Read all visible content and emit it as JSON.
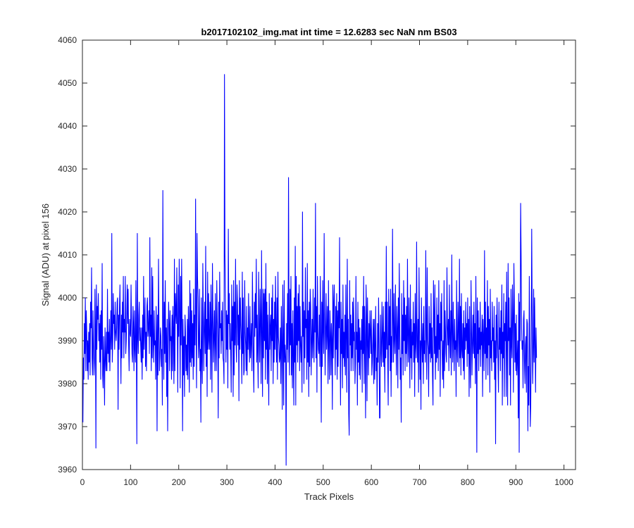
{
  "chart_data": {
    "type": "line",
    "title": "b2017102102_img.mat int time = 12.6283 sec  NaN nm BS03",
    "xlabel": "Track Pixels",
    "ylabel": "Signal (ADU) at pixel 156",
    "xlim": [
      0,
      1024
    ],
    "ylim": [
      3960,
      4060
    ],
    "x_ticks": [
      0,
      100,
      200,
      300,
      400,
      500,
      600,
      700,
      800,
      900,
      1000
    ],
    "x_tick_labels": [
      "0",
      "100",
      "200",
      "300",
      "400",
      "500",
      "600",
      "700",
      "800",
      "900",
      "1000"
    ],
    "y_ticks": [
      3960,
      3970,
      3980,
      3990,
      4000,
      4010,
      4020,
      4030,
      4040,
      4050,
      4060
    ],
    "y_tick_labels": [
      "3960",
      "3970",
      "3980",
      "3990",
      "4000",
      "4010",
      "4020",
      "4030",
      "4040",
      "4050",
      "4060"
    ],
    "grid": false,
    "series": [
      {
        "color": "#0000ff",
        "x_start": 1,
        "x_step": 1,
        "values": [
          3971,
          3986,
          3981,
          3994,
          3987,
          4000,
          3983,
          3997,
          3992,
          3983,
          3990,
          3981,
          3992,
          3985,
          3994,
          3982,
          3999,
          3993,
          4007,
          3986,
          3982,
          3997,
          3989,
          3982,
          3985,
          4002,
          3993,
          3965,
          4003,
          3988,
          3998,
          3995,
          4001,
          3990,
          3994,
          3985,
          3996,
          3981,
          3997,
          3988,
          4008,
          3982,
          3979,
          3991,
          3985,
          3975,
          3993,
          3986,
          3983,
          3992,
          3983,
          4002,
          3987,
          3992,
          3985,
          3995,
          3983,
          3990,
          3997,
          3988,
          4015,
          3985,
          3990,
          4001,
          3994,
          3996,
          3988,
          3999,
          3992,
          3990,
          3993,
          3999,
          4000,
          3974,
          3996,
          3988,
          3998,
          4003,
          3991,
          3980,
          3996,
          3986,
          3999,
          3992,
          4005,
          3986,
          3995,
          3992,
          4005,
          3987,
          3990,
          3996,
          4003,
          3994,
          4002,
          3989,
          3983,
          3995,
          3992,
          3991,
          4003,
          3994,
          3987,
          3985,
          3998,
          3994,
          3983,
          3997,
          3988,
          3985,
          4004,
          3990,
          3966,
          4015,
          3991,
          3987,
          3996,
          3999,
          3990,
          3993,
          3989,
          3985,
          3993,
          3981,
          3996,
          3986,
          4005,
          3988,
          3993,
          4000,
          3984,
          3992,
          3983,
          3998,
          4000,
          3991,
          3993,
          3997,
          3987,
          4014,
          3991,
          3996,
          3983,
          4007,
          3986,
          4005,
          3990,
          3985,
          3997,
          3989,
          3990,
          3981,
          3998,
          3992,
          3969,
          3996,
          3982,
          4009,
          3993,
          3983,
          3986,
          3993,
          3991,
          3984,
          3988,
          3975,
          4025,
          3996,
          3981,
          3999,
          3987,
          4004,
          3985,
          3993,
          3977,
          3995,
          3969,
          3987,
          3999,
          3994,
          3983,
          3997,
          3990,
          3991,
          3981,
          3996,
          3983,
          3998,
          3992,
          3980,
          4009,
          3983,
          4001,
          3997,
          3994,
          4007,
          3993,
          3978,
          4003,
          3991,
          4009,
          3996,
          3979,
          4005,
          3989,
          4009,
          3994,
          3969,
          3995,
          3982,
          3991,
          3977,
          3996,
          3992,
          3983,
          3989,
          3982,
          3995,
          3981,
          3998,
          3992,
          3978,
          4004,
          3985,
          4001,
          3984,
          3997,
          3986,
          3994,
          3981,
          4002,
          3984,
          3996,
          3989,
          4023,
          3994,
          3979,
          4015,
          4005,
          4000,
          3986,
          3989,
          4002,
          3983,
          3988,
          3971,
          4000,
          3986,
          3980,
          4008,
          3996,
          3983,
          3993,
          3999,
          3987,
          4012,
          3984,
          3995,
          3977,
          4006,
          3988,
          4001,
          3990,
          3988,
          3999,
          3981,
          4003,
          3993,
          3978,
          4008,
          3996,
          3985,
          3991,
          3997,
          3983,
          4001,
          3989,
          3983,
          4004,
          3995,
          3990,
          3972,
          3999,
          3986,
          4006,
          3993,
          3994,
          3987,
          3997,
          3990,
          3999,
          3986,
          3985,
          3980,
          4052,
          4010,
          4000,
          3985,
          3997,
          3988,
          3996,
          3979,
          4016,
          3994,
          4001,
          3988,
          3994,
          3987,
          3978,
          4003,
          3990,
          3998,
          3977,
          4004,
          3982,
          3999,
          3989,
          4009,
          3990,
          3985,
          4003,
          3999,
          3989,
          3996,
          3976,
          4004,
          3988,
          4000,
          3994,
          3990,
          3980,
          4006,
          3987,
          4000,
          3982,
          3983,
          4004,
          3992,
          3989,
          3983,
          3998,
          3982,
          3993,
          3988,
          4001,
          3990,
          3985,
          3998,
          3986,
          3990,
          3994,
          3983,
          4006,
          3995,
          3985,
          3978,
          3999,
          3991,
          4001,
          3993,
          4009,
          3985,
          3996,
          3987,
          3979,
          4006,
          3992,
          3985,
          4002,
          3995,
          3980,
          4011,
          3992,
          3977,
          4002,
          3986,
          4001,
          3990,
          4002,
          3981,
          4008,
          3988,
          3999,
          3980,
          3996,
          3986,
          3975,
          4001,
          3988,
          3993,
          3996,
          3983,
          4000,
          3990,
          4003,
          3980,
          3995,
          3985,
          3999,
          3988,
          4005,
          3993,
          3985,
          4000,
          3981,
          4006,
          3991,
          3989,
          3985,
          3986,
          3993,
          3980,
          3998,
          3989,
          3974,
          4003,
          3990,
          3975,
          4004,
          3985,
          3989,
          3986,
          3961,
          3994,
          3988,
          4001,
          3985,
          4028,
          3992,
          3982,
          4002,
          3989,
          4005,
          3982,
          3994,
          3979,
          3997,
          3987,
          3975,
          4000,
          3985,
          4012,
          3975,
          4005,
          3989,
          3998,
          3985,
          4001,
          3990,
          4003,
          3983,
          3998,
          3989,
          3985,
          3991,
          3978,
          4020,
          3991,
          3999,
          3980,
          3997,
          3986,
          4007,
          3993,
          3995,
          3981,
          4008,
          3985,
          3997,
          3977,
          3999,
          3984,
          4002,
          3998,
          3982,
          3990,
          3995,
          3986,
          4002,
          3990,
          3985,
          4000,
          3992,
          4022,
          3986,
          3998,
          3978,
          4005,
          3992,
          3988,
          3987,
          3996,
          3984,
          4005,
          3990,
          3971,
          3999,
          3984,
          4004,
          3992,
          3987,
          4015,
          3995,
          3982,
          3993,
          4001,
          3988,
          3992,
          3998,
          3980,
          4004,
          3989,
          3981,
          3997,
          3992,
          3982,
          3994,
          3990,
          3974,
          4003,
          3986,
          3999,
          4003,
          3991,
          3982,
          3998,
          3988,
          4001,
          3981,
          3997,
          3984,
          3999,
          3993,
          4014,
          3990,
          3975,
          3999,
          3987,
          3995,
          3979,
          4003,
          3986,
          3992,
          3984,
          3996,
          3982,
          4003,
          3991,
          3978,
          4009,
          3986,
          3995,
          3973,
          3968,
          4004,
          3989,
          3996,
          3983,
          3994,
          3986,
          3999,
          3983,
          4000,
          3990,
          3992,
          3980,
          3985,
          4005,
          3988,
          3992,
          3975,
          3999,
          3985,
          3995,
          3982,
          3993,
          3981,
          3990,
          3988,
          3995,
          3978,
          3998,
          3987,
          4005,
          3980,
          3998,
          3989,
          3972,
          4003,
          3996,
          3976,
          4000,
          3990,
          3982,
          3994,
          3986,
          3997,
          3992,
          3987,
          3997,
          3982,
          3985,
          3990,
          3995,
          3980,
          3995,
          3981,
          3989,
          3998,
          3983,
          3986,
          3975,
          3994,
          3985,
          4000,
          3990,
          3972,
          3972,
          3996,
          3988,
          3984,
          3999,
          3991,
          3985,
          3998,
          3984,
          3992,
          3978,
          3999,
          3986,
          4012,
          3988,
          3999,
          3985,
          3975,
          4002,
          3989,
          3998,
          3983,
          4002,
          3977,
          3991,
          3985,
          4016,
          3995,
          3985,
          4001,
          3990,
          3987,
          4003,
          3991,
          3982,
          3998,
          3993,
          3979,
          4000,
          3988,
          4008,
          3991,
          3981,
          3986,
          3971,
          4001,
          3987,
          3996,
          3982,
          4004,
          3990,
          4000,
          3983,
          3996,
          3987,
          3998,
          3984,
          4009,
          3990,
          3985,
          4000,
          3992,
          3979,
          4003,
          3986,
          3995,
          3981,
          3992,
          3989,
          3999,
          3985,
          3994,
          3977,
          4001,
          3989,
          3986,
          4013,
          3990,
          3985,
          3995,
          3978,
          4007,
          3993,
          3981,
          3990,
          3974,
          4000,
          3990,
          3985,
          3994,
          3980,
          3998,
          3987,
          3990,
          3985,
          4011,
          3992,
          3981,
          4007,
          3990,
          3988,
          3977,
          3998,
          3987,
          3994,
          3985,
          4001,
          3986,
          3993,
          3982,
          3975,
          4004,
          3996,
          3987,
          4003,
          3981,
          3991,
          3985,
          4000,
          3986,
          3996,
          3983,
          4004,
          3988,
          3994,
          3977,
          3999,
          3990,
          4001,
          3987,
          3981,
          3990,
          3979,
          4004,
          3983,
          3997,
          3992,
          3987,
          3985,
          4007,
          3993,
          3989,
          3995,
          3983,
          4003,
          3991,
          3986,
          3997,
          3982,
          4010,
          3992,
          3985,
          3999,
          3990,
          3983,
          3995,
          3988,
          3990,
          3977,
          4004,
          3989,
          3985,
          3999,
          3993,
          3984,
          4009,
          3986,
          3998,
          3982,
          4001,
          3988,
          3986,
          3994,
          3983,
          3997,
          3981,
          3993,
          3988,
          3999,
          3990,
          3994,
          3984,
          4000,
          3987,
          3995,
          3977,
          3998,
          3985,
          3979,
          4004,
          3993,
          3982,
          3990,
          3996,
          3987,
          3999,
          3986,
          3994,
          3980,
          4005,
          3989,
          3964,
          4000,
          3987,
          3997,
          3983,
          3993,
          3988,
          3999,
          3984,
          3992,
          3989,
          3996,
          3977,
          3995,
          3990,
          3983,
          4011,
          3987,
          3999,
          3981,
          3993,
          3986,
          4004,
          3982,
          3998,
          3989,
          3995,
          3978,
          4002,
          3986,
          3990,
          3983,
          3999,
          3990,
          3993,
          3985,
          3998,
          3981,
          3990,
          3966,
          3996,
          3986,
          4000,
          3991,
          3985,
          3978,
          3999,
          3988,
          3993,
          3983,
          3997,
          3987,
          4003,
          3975,
          3992,
          3986,
          4001,
          3977,
          3994,
          3990,
          3999,
          3977,
          4006,
          3988,
          3975,
          4008,
          3990,
          4000,
          3982,
          3993,
          3975,
          4002,
          3989,
          3986,
          4003,
          3995,
          3978,
          4008,
          3999,
          3985,
          3994,
          3983,
          3996,
          3982,
          3986,
          3990,
          3972,
          4001,
          3964,
          3999,
          3990,
          4022,
          4010,
          3993,
          3988,
          3990,
          3979,
          3995,
          3997,
          3985,
          3980,
          3989,
          3991,
          3978,
          3995,
          3994,
          3969,
          3984,
          3975,
          4005,
          3989,
          3970,
          3975,
          3990,
          4016,
          3996,
          3980,
          3987,
          4002,
          3985,
          4000,
          3990,
          3978,
          3993,
          3986
        ]
      }
    ]
  }
}
